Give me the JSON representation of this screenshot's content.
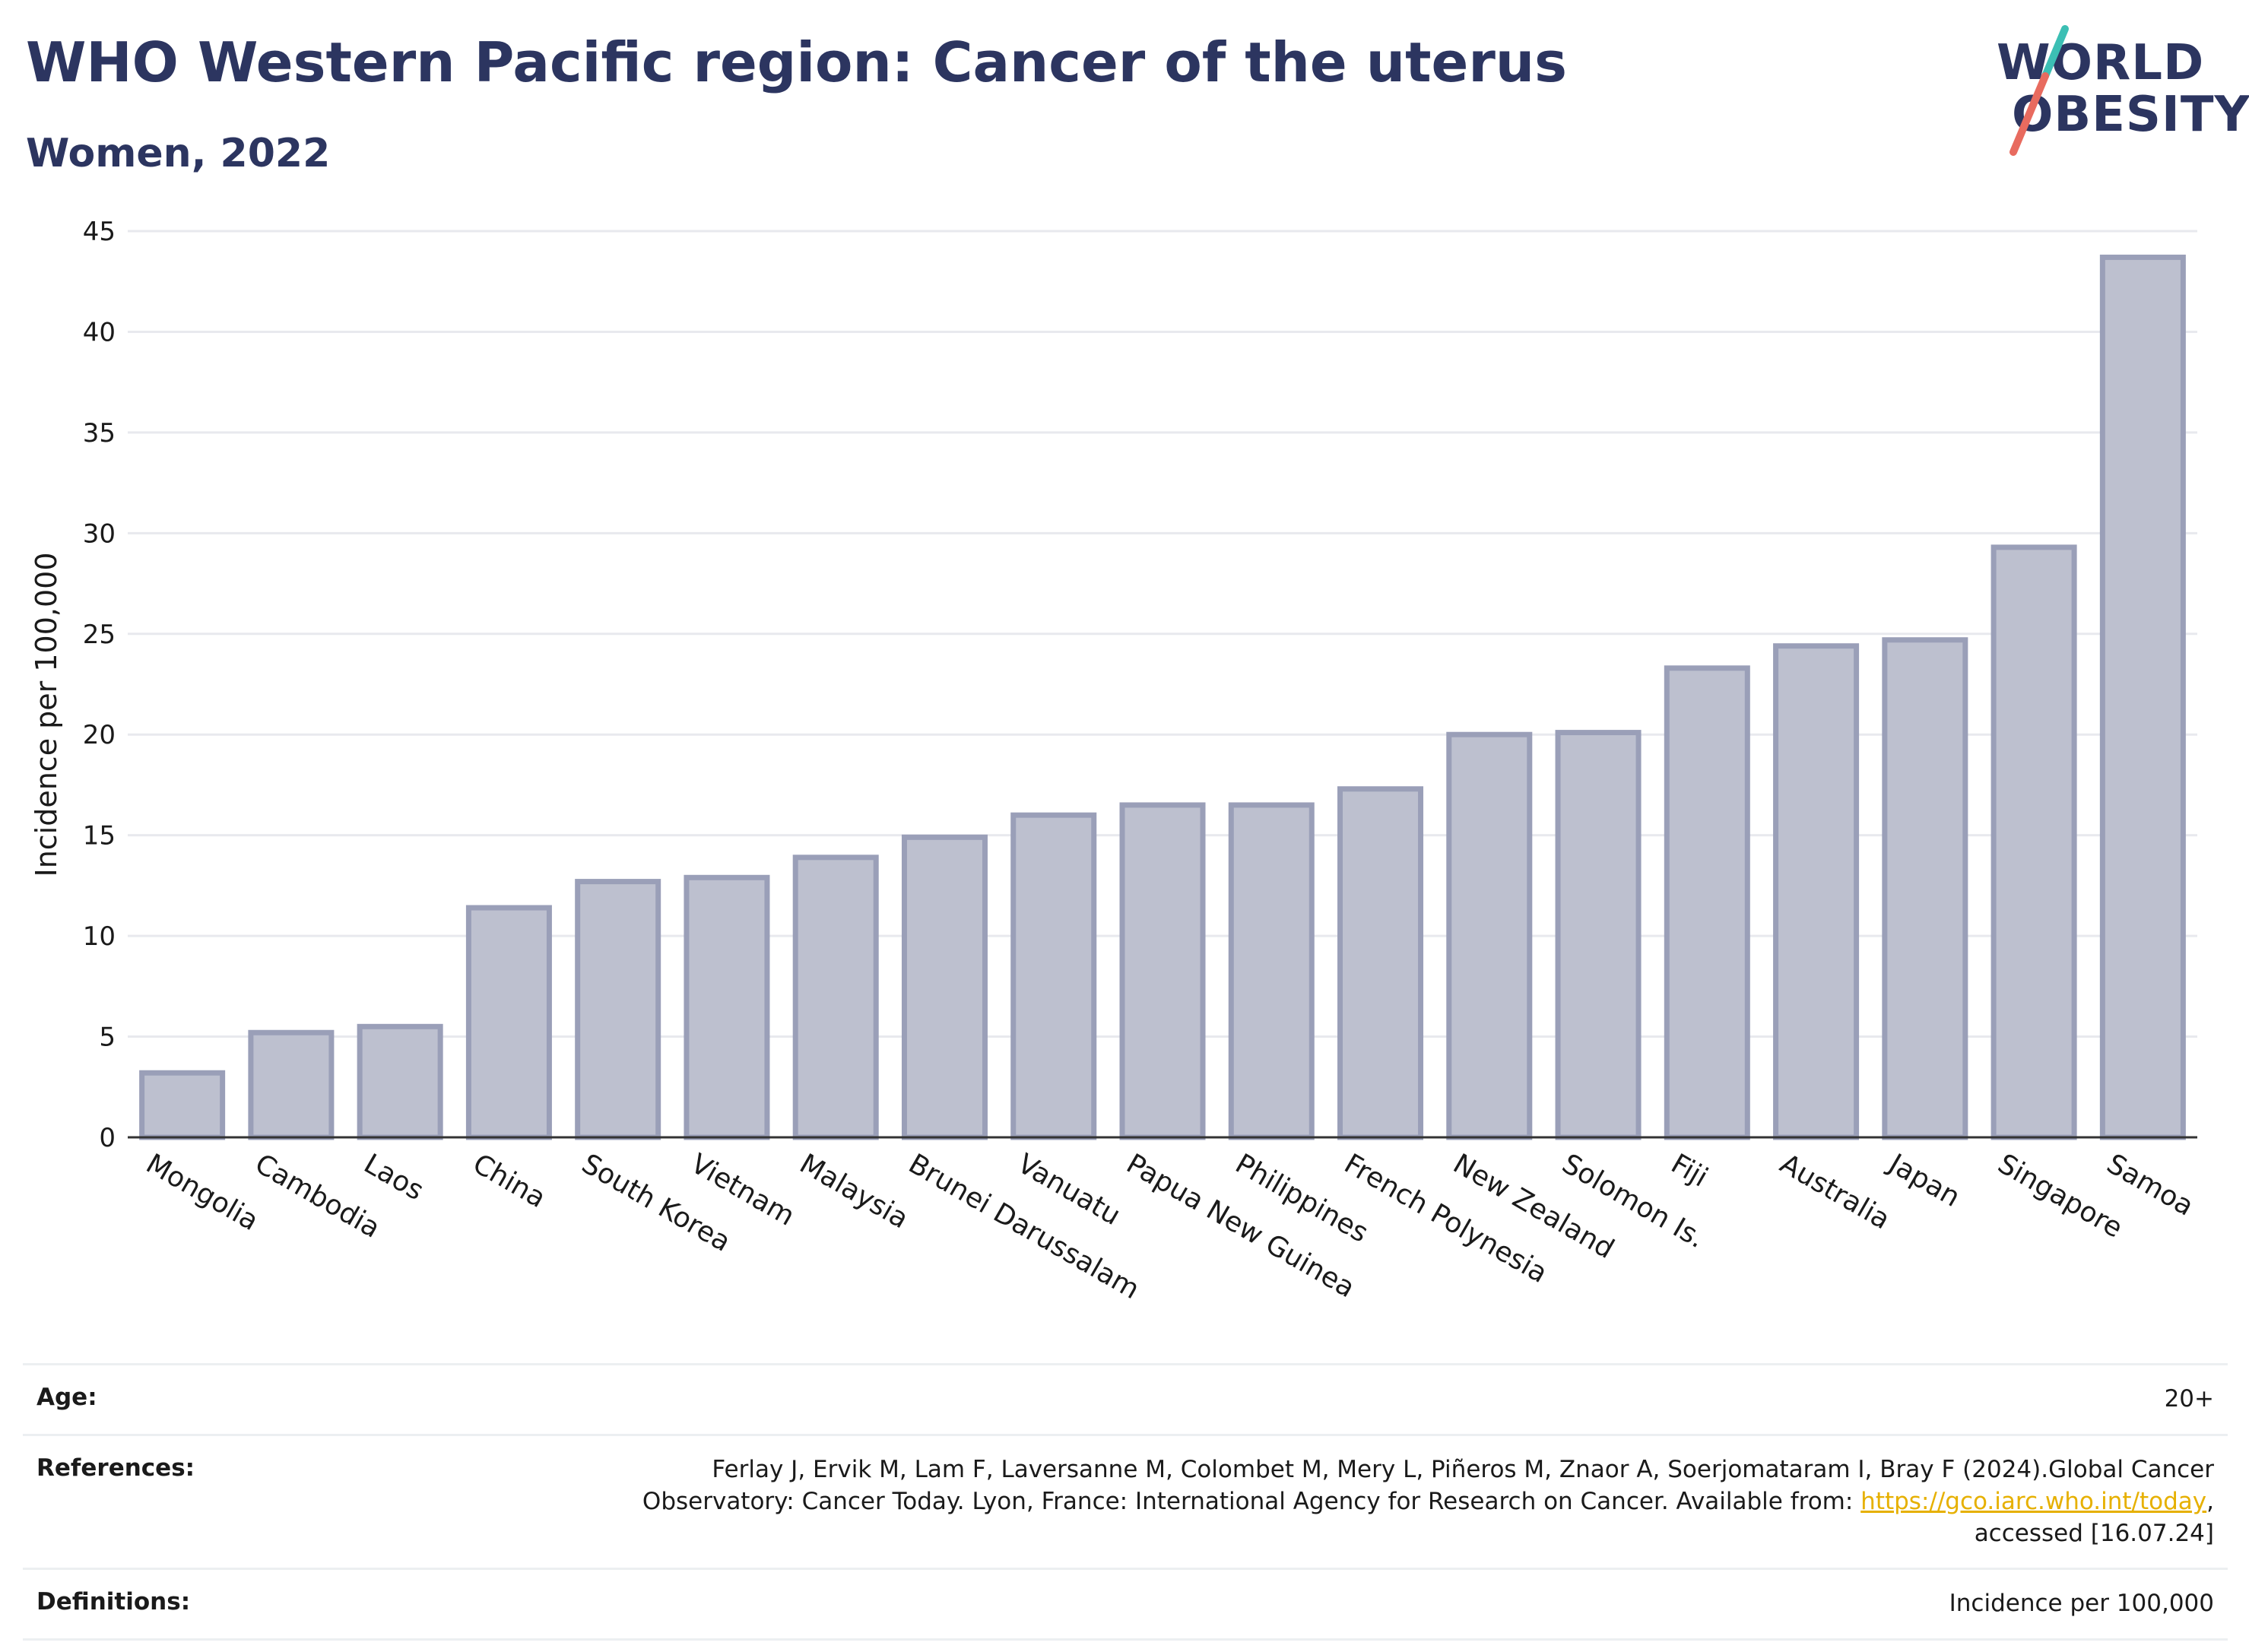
{
  "header": {
    "title": "WHO Western Pacific region: Cancer of the uterus",
    "subtitle": "Women, 2022"
  },
  "logo": {
    "line1": "WORLD",
    "line2": "OBESITY",
    "text_color": "#2c3560",
    "slash_colors": [
      "#3cbfb4",
      "#e86b5f"
    ]
  },
  "chart_data": {
    "type": "bar",
    "title": "WHO Western Pacific region: Cancer of the uterus",
    "subtitle": "Women, 2022",
    "xlabel": "",
    "ylabel": "Incidence per 100,000",
    "ylim": [
      0,
      45
    ],
    "yticks": [
      0,
      5,
      10,
      15,
      20,
      25,
      30,
      35,
      40,
      45
    ],
    "grid": true,
    "bar_color": "#bdc0cf",
    "bar_edge_color": "#9a9fb8",
    "categories": [
      "Mongolia",
      "Cambodia",
      "Laos",
      "China",
      "South Korea",
      "Vietnam",
      "Malaysia",
      "Brunei Darussalam",
      "Vanuatu",
      "Papua New Guinea",
      "Philippines",
      "French Polynesia",
      "New Zealand",
      "Solomon Is.",
      "Fiji",
      "Australia",
      "Japan",
      "Singapore",
      "Samoa"
    ],
    "values": [
      3.2,
      5.2,
      5.5,
      11.4,
      12.7,
      12.9,
      13.9,
      14.9,
      16.0,
      16.5,
      16.5,
      17.3,
      20.0,
      20.1,
      23.3,
      24.4,
      24.7,
      29.3,
      43.7
    ]
  },
  "info": {
    "age_label": "Age:",
    "age_value": "20+",
    "references_label": "References:",
    "references_text_1": "Ferlay J, Ervik M, Lam F, Laversanne M, Colombet M, Mery L, Piñeros M, Znaor A, Soerjomataram I, Bray F (2024).Global Cancer",
    "references_text_2": "Observatory: Cancer Today. Lyon, France: International Agency for Research on Cancer. Available from: ",
    "references_link": "https://gco.iarc.who.int/today",
    "references_text_3": ",",
    "references_text_4": "accessed [16.07.24]",
    "definitions_label": "Definitions:",
    "definitions_value": "Incidence per 100,000"
  }
}
